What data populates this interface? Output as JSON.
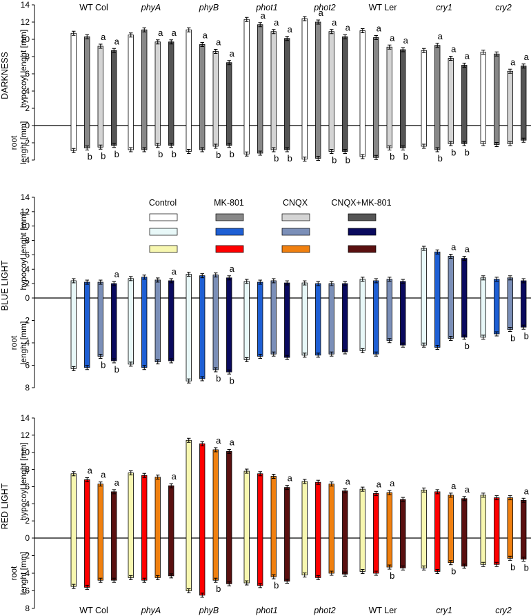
{
  "chart_data": {
    "type": "bar",
    "description_free": true,
    "genotypes": [
      "WT Col",
      "phyA",
      "phyB",
      "phot1",
      "phot2",
      "WT Ler",
      "cry1",
      "cry2"
    ],
    "genotype_italic": [
      false,
      true,
      true,
      true,
      true,
      false,
      true,
      true
    ],
    "treatments": [
      "Control",
      "MK-801",
      "CNQX",
      "CNQX+MK-801"
    ],
    "upper_axis_label": "hypocoyl lenght [mm]",
    "lower_axis_label_line1": "root",
    "lower_axis_label_line2": "lenght [mm]",
    "panels": [
      {
        "id": "dark",
        "row_label": "DARKNESS",
        "colors": [
          "#ffffff",
          "#888888",
          "#d4d4d4",
          "#555555"
        ],
        "hyp_ylim": [
          0,
          14
        ],
        "root_ylim": [
          0,
          4
        ],
        "hypocotyl": [
          [
            10.7,
            10.3,
            9.2,
            8.7
          ],
          [
            10.5,
            11.1,
            9.7,
            9.7
          ],
          [
            11.1,
            9.4,
            8.6,
            7.3
          ],
          [
            12.3,
            11.7,
            10.9,
            10.1
          ],
          [
            12.4,
            12.0,
            10.9,
            10.3
          ],
          [
            11.0,
            10.2,
            9.1,
            8.8
          ],
          [
            8.7,
            9.3,
            7.8,
            7.0
          ],
          [
            8.5,
            8.3,
            6.3,
            6.9
          ]
        ],
        "root": [
          [
            2.9,
            2.6,
            2.5,
            2.3
          ],
          [
            2.8,
            2.8,
            2.3,
            2.3
          ],
          [
            3.0,
            2.8,
            2.4,
            2.3
          ],
          [
            3.3,
            3.2,
            2.8,
            2.8
          ],
          [
            3.9,
            3.8,
            3.0,
            3.0
          ],
          [
            3.6,
            3.7,
            2.6,
            2.6
          ],
          [
            2.4,
            2.8,
            2.1,
            2.1
          ],
          [
            2.1,
            2.2,
            2.1,
            1.7
          ]
        ],
        "hyp_letters": [
          [
            "",
            "",
            "a",
            "a"
          ],
          [
            "",
            "",
            "a",
            "a"
          ],
          [
            "",
            "a",
            "a",
            "a"
          ],
          [
            "",
            "a",
            "a",
            "a"
          ],
          [
            "",
            "a",
            "a",
            "a"
          ],
          [
            "",
            "a",
            "a",
            "a"
          ],
          [
            "",
            "a",
            "a",
            "a"
          ],
          [
            "",
            "",
            "a",
            "a"
          ]
        ],
        "root_letters": [
          [
            "",
            "b",
            "b",
            "b"
          ],
          [
            "",
            "",
            "b",
            "b"
          ],
          [
            "",
            "",
            "b",
            "b"
          ],
          [
            "",
            "",
            "b",
            "b"
          ],
          [
            "",
            "",
            "b",
            "b"
          ],
          [
            "",
            "",
            "b",
            "b"
          ],
          [
            "",
            "b",
            "b",
            "b"
          ],
          [
            "",
            "",
            "",
            ""
          ]
        ]
      },
      {
        "id": "blue",
        "row_label": "BLUE LIGHT",
        "colors": [
          "#e8f8f8",
          "#1e5fd4",
          "#7b8fb8",
          "#0a0a5e"
        ],
        "hyp_ylim": [
          0,
          14
        ],
        "root_ylim": [
          0,
          8
        ],
        "hypocotyl": [
          [
            2.4,
            2.2,
            2.2,
            2.0
          ],
          [
            2.7,
            2.9,
            2.5,
            2.4
          ],
          [
            3.3,
            3.1,
            3.2,
            2.8
          ],
          [
            2.3,
            2.2,
            2.4,
            2.1
          ],
          [
            2.1,
            2.0,
            2.0,
            2.0
          ],
          [
            2.6,
            2.4,
            2.6,
            2.3
          ],
          [
            6.9,
            6.4,
            5.8,
            5.5
          ],
          [
            2.8,
            2.6,
            2.8,
            2.4
          ]
        ],
        "root": [
          [
            6.3,
            6.2,
            5.2,
            5.6
          ],
          [
            5.9,
            6.2,
            5.7,
            5.6
          ],
          [
            7.4,
            7.2,
            6.4,
            6.6
          ],
          [
            5.5,
            5.2,
            5.0,
            5.3
          ],
          [
            5.1,
            5.1,
            5.0,
            4.8
          ],
          [
            4.7,
            5.0,
            3.8,
            4.2
          ],
          [
            4.2,
            4.4,
            3.6,
            3.5
          ],
          [
            3.5,
            3.2,
            2.8,
            2.6
          ]
        ],
        "hyp_letters": [
          [
            "",
            "",
            "",
            "a"
          ],
          [
            "",
            "",
            "",
            "a"
          ],
          [
            "",
            "",
            "",
            "a"
          ],
          [
            "",
            "",
            "",
            ""
          ],
          [
            "",
            "",
            "",
            ""
          ],
          [
            "",
            "",
            "",
            ""
          ],
          [
            "",
            "",
            "a",
            "a"
          ],
          [
            "",
            "",
            "",
            ""
          ]
        ],
        "root_letters": [
          [
            "",
            "",
            "b",
            "b"
          ],
          [
            "",
            "",
            "",
            ""
          ],
          [
            "",
            "",
            "b",
            "b"
          ],
          [
            "",
            "",
            "",
            ""
          ],
          [
            "",
            "",
            "",
            ""
          ],
          [
            "",
            "",
            "",
            ""
          ],
          [
            "",
            "",
            "",
            "b"
          ],
          [
            "",
            "",
            "b",
            "b"
          ]
        ]
      },
      {
        "id": "red",
        "row_label": "RED LIGHT",
        "colors": [
          "#f7f7b0",
          "#ff0000",
          "#f08010",
          "#5a1010"
        ],
        "hyp_ylim": [
          0,
          14
        ],
        "root_ylim": [
          0,
          8
        ],
        "hypocotyl": [
          [
            7.5,
            6.8,
            6.3,
            5.4
          ],
          [
            7.6,
            7.3,
            7.1,
            6.1
          ],
          [
            11.4,
            11.0,
            10.3,
            10.1
          ],
          [
            7.8,
            7.5,
            7.2,
            5.9
          ],
          [
            6.6,
            6.5,
            6.3,
            5.5
          ],
          [
            5.7,
            5.2,
            5.3,
            4.5
          ],
          [
            5.6,
            5.4,
            5.0,
            4.6
          ],
          [
            5.0,
            4.7,
            4.7,
            4.4
          ]
        ],
        "root": [
          [
            5.5,
            5.6,
            4.8,
            4.8
          ],
          [
            4.5,
            4.8,
            4.5,
            4.3
          ],
          [
            6.0,
            6.5,
            4.8,
            5.2
          ],
          [
            5.1,
            5.4,
            4.4,
            4.9
          ],
          [
            4.2,
            4.5,
            4.0,
            4.1
          ],
          [
            3.8,
            4.0,
            3.3,
            3.4
          ],
          [
            3.4,
            3.8,
            2.8,
            3.2
          ],
          [
            3.0,
            3.0,
            2.3,
            2.4
          ]
        ],
        "hyp_letters": [
          [
            "",
            "a",
            "a",
            "a"
          ],
          [
            "",
            "",
            "",
            "a"
          ],
          [
            "",
            "",
            "a",
            "a"
          ],
          [
            "",
            "",
            "",
            "a"
          ],
          [
            "",
            "",
            "",
            "a"
          ],
          [
            "",
            "a",
            "a",
            ""
          ],
          [
            "",
            "",
            "a",
            "a"
          ],
          [
            "",
            "",
            "",
            "a"
          ]
        ],
        "root_letters": [
          [
            "",
            "",
            "",
            ""
          ],
          [
            "",
            "",
            "",
            ""
          ],
          [
            "",
            "",
            "b",
            ""
          ],
          [
            "",
            "",
            "b",
            ""
          ],
          [
            "",
            "",
            "",
            ""
          ],
          [
            "",
            "",
            "b",
            ""
          ],
          [
            "",
            "",
            "b",
            ""
          ],
          [
            "",
            "",
            "b",
            "b"
          ]
        ]
      }
    ]
  }
}
